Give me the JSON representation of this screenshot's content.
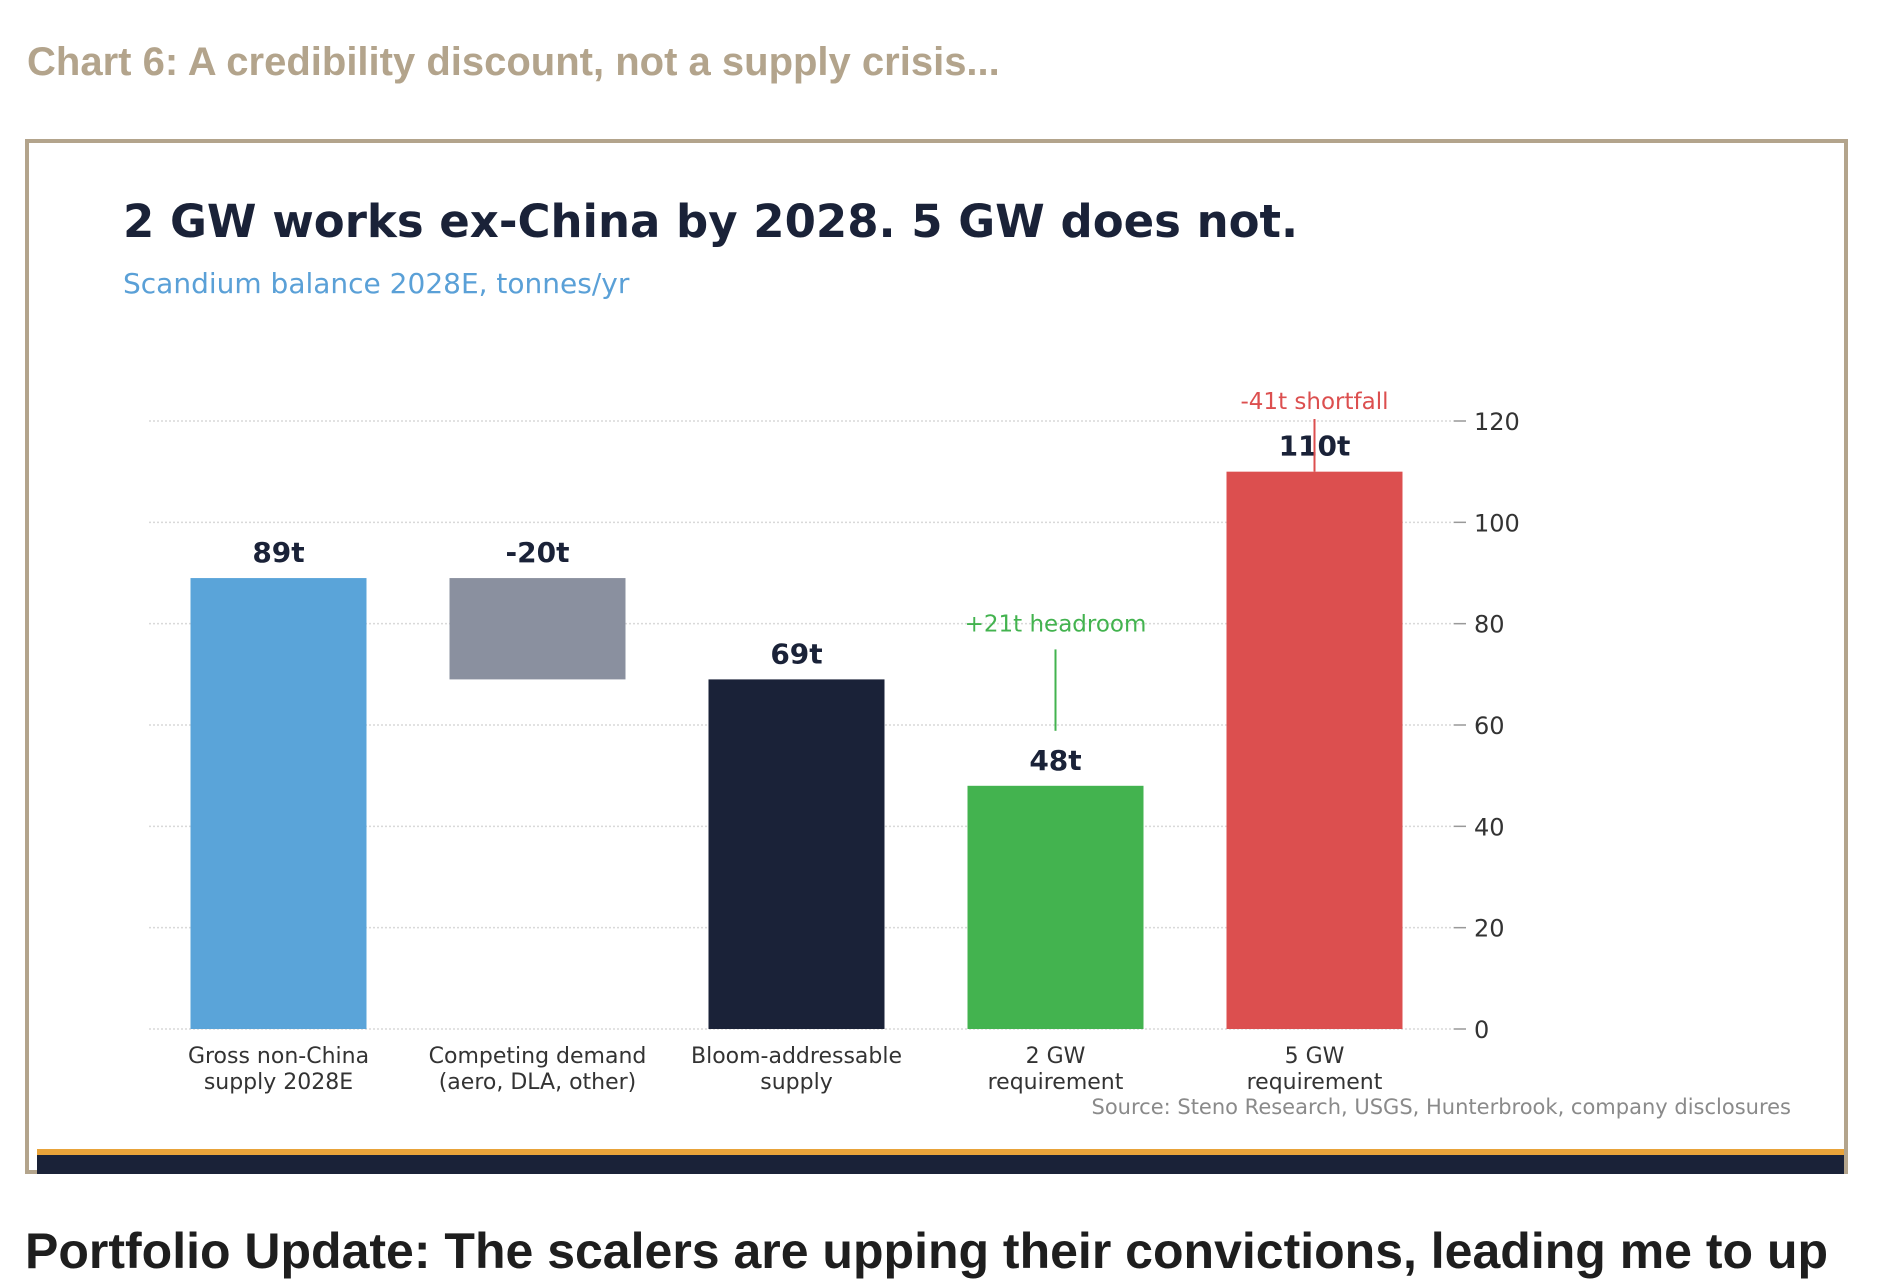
{
  "caption": "Chart 6: A credibility discount, not a supply crisis...",
  "article_heading": "Portfolio Update: The scalers are upping their convictions, leading me to up",
  "colors": {
    "gross_supply": "#5aa4d9",
    "competing_demand": "#8a909f",
    "addressable": "#1a2238",
    "requirement_2gw": "#43b34f",
    "requirement_5gw": "#dc4f4f",
    "headroom_note": "#43b34f",
    "shortfall_note": "#dc4f4f",
    "source": "#8a8a8a"
  },
  "chart_data": {
    "type": "bar",
    "title": "2 GW works ex-China by 2028. 5 GW does not.",
    "subtitle": "Scandium balance 2028E, tonnes/yr",
    "categories": [
      "Gross non-China supply 2028E",
      "Competing demand (aero, DLA, other)",
      "Bloom-addressable supply",
      "2 GW requirement",
      "5 GW requirement"
    ],
    "category_lines": [
      [
        "Gross non-China",
        "supply 2028E"
      ],
      [
        "Competing demand",
        "(aero, DLA, other)"
      ],
      [
        "Bloom-addressable",
        "supply"
      ],
      [
        "2 GW",
        "requirement"
      ],
      [
        "5 GW",
        "requirement"
      ]
    ],
    "bars": [
      {
        "base": 0,
        "top": 89,
        "label": "89t",
        "color_key": "gross_supply"
      },
      {
        "base": 69,
        "top": 89,
        "label": "-20t",
        "color_key": "competing_demand"
      },
      {
        "base": 0,
        "top": 69,
        "label": "69t",
        "color_key": "addressable"
      },
      {
        "base": 0,
        "top": 48,
        "label": "48t",
        "color_key": "requirement_2gw"
      },
      {
        "base": 0,
        "top": 110,
        "label": "110t",
        "color_key": "requirement_5gw"
      }
    ],
    "annotations": [
      {
        "text": "+21t headroom",
        "bar_index": 3,
        "from": 48,
        "to": 69,
        "color_key": "headroom_note"
      },
      {
        "text": "-41t shortfall",
        "bar_index": 4,
        "from": 110,
        "to": 120,
        "color_key": "shortfall_note"
      }
    ],
    "ylim": [
      0,
      120
    ],
    "yticks": [
      0,
      20,
      40,
      60,
      80,
      100,
      120
    ],
    "y_axis_side": "right",
    "grid": true,
    "xlabel": "",
    "ylabel": "",
    "source": "Source: Steno Research, USGS, Hunterbrook, company disclosures"
  }
}
